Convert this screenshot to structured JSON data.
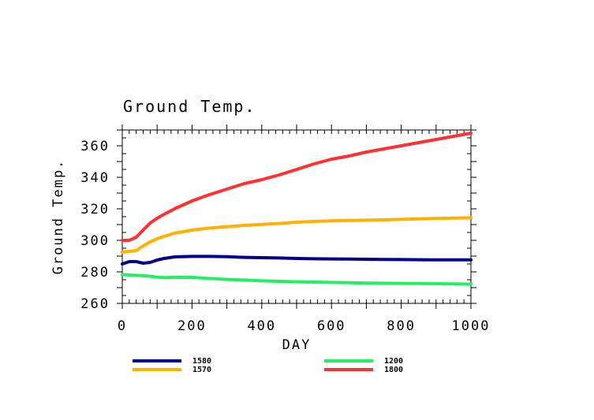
{
  "chart_data": {
    "type": "line",
    "title": "Ground Temp.",
    "xlabel": "DAY",
    "ylabel": "Ground Temp.",
    "xlim": [
      0,
      1000
    ],
    "ylim": [
      260,
      370
    ],
    "xticks": [
      "0",
      "200",
      "400",
      "600",
      "800",
      "1000"
    ],
    "yticks": [
      "260",
      "280",
      "300",
      "320",
      "340",
      "360"
    ],
    "grid": false,
    "legend_position": "bottom",
    "x": [
      0,
      20,
      40,
      60,
      80,
      100,
      120,
      150,
      200,
      250,
      300,
      350,
      400,
      450,
      500,
      550,
      600,
      650,
      700,
      750,
      800,
      850,
      900,
      950,
      1000
    ],
    "series": [
      {
        "name": "1580",
        "color": "#00008f",
        "values": [
          285,
          286.5,
          286.5,
          285.5,
          286,
          287.5,
          288.5,
          289.5,
          289.8,
          289.8,
          289.6,
          289.2,
          289,
          288.8,
          288.5,
          288.3,
          288.2,
          288.1,
          288,
          287.9,
          287.8,
          287.7,
          287.6,
          287.6,
          287.6
        ]
      },
      {
        "name": "1570",
        "color": "#ffb000",
        "values": [
          292.5,
          293,
          293.5,
          296.5,
          299,
          301,
          302.5,
          304.5,
          306.5,
          307.8,
          308.6,
          309.5,
          310.1,
          310.7,
          311.5,
          312,
          312.4,
          312.6,
          312.8,
          313,
          313.3,
          313.6,
          313.9,
          314.1,
          314.3
        ]
      },
      {
        "name": "1200",
        "color": "#22f060",
        "values": [
          278.3,
          278,
          277.8,
          277.5,
          277.2,
          276.6,
          276.4,
          276.5,
          276.5,
          275.8,
          275.2,
          274.8,
          274.3,
          274,
          273.7,
          273.5,
          273.3,
          273.1,
          272.9,
          272.8,
          272.7,
          272.6,
          272.5,
          272.4,
          272.2
        ]
      },
      {
        "name": "1800",
        "color": "#ff3030",
        "values": [
          300,
          300,
          302,
          306.5,
          311,
          314,
          316.5,
          320,
          325,
          329,
          332.5,
          336,
          338.5,
          341.5,
          345,
          348.5,
          351.5,
          353.5,
          356,
          358,
          360,
          362,
          364,
          366,
          368
        ]
      }
    ]
  }
}
